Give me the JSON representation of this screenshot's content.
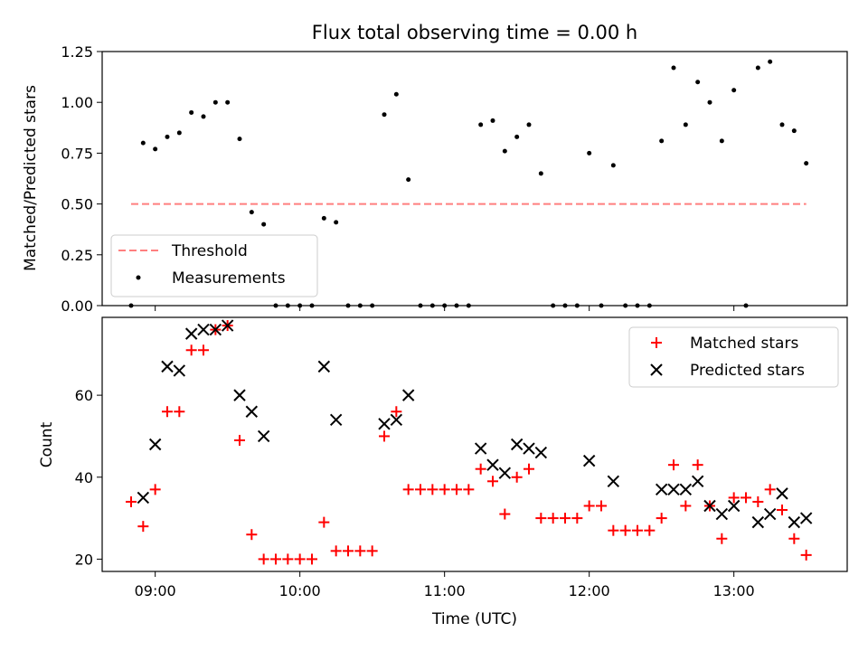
{
  "chart_data": [
    {
      "type": "scatter",
      "title": "Flux total observing time = 0.00 h",
      "xlabel": "",
      "ylabel": "Matched/Predicted stars",
      "xlim": [
        "08:38",
        "13:47"
      ],
      "ylim": [
        0,
        1.25
      ],
      "yticks": [
        0,
        0.25,
        0.5,
        0.75,
        1.0,
        1.25
      ],
      "ytick_labels": [
        "0.00",
        "0.25",
        "0.50",
        "0.75",
        "1.00",
        "1.25"
      ],
      "xticks": [
        "09:00",
        "10:00",
        "11:00",
        "12:00",
        "13:00"
      ],
      "grid": false,
      "legend_position": "lower-left",
      "series": [
        {
          "name": "Threshold",
          "kind": "line",
          "style": "dashed",
          "color": "#ff7f7f",
          "x": [
            "08:50",
            "13:30"
          ],
          "y": [
            0.5,
            0.5
          ]
        },
        {
          "name": "Measurements",
          "kind": "scatter",
          "marker": "dot",
          "color": "#000000",
          "x": [
            "08:50",
            "08:55",
            "09:00",
            "09:05",
            "09:10",
            "09:15",
            "09:20",
            "09:25",
            "09:30",
            "09:35",
            "09:40",
            "09:45",
            "09:50",
            "09:55",
            "10:00",
            "10:05",
            "10:10",
            "10:15",
            "10:20",
            "10:25",
            "10:30",
            "10:35",
            "10:40",
            "10:45",
            "10:50",
            "10:55",
            "11:00",
            "11:05",
            "11:10",
            "11:15",
            "11:20",
            "11:25",
            "11:30",
            "11:35",
            "11:40",
            "11:45",
            "11:50",
            "11:55",
            "12:00",
            "12:05",
            "12:10",
            "12:15",
            "12:20",
            "12:25",
            "12:30",
            "12:35",
            "12:40",
            "12:45",
            "12:50",
            "12:55",
            "13:00",
            "13:05",
            "13:10",
            "13:15",
            "13:20",
            "13:25",
            "13:30"
          ],
          "y": [
            0,
            0.8,
            0.77,
            0.83,
            0.85,
            0.95,
            0.93,
            1.0,
            1.0,
            0.82,
            0.46,
            0.4,
            0,
            0,
            0,
            0,
            0.43,
            0.41,
            0,
            0,
            0,
            0.94,
            1.04,
            0.62,
            0,
            0,
            0,
            0,
            0,
            0.89,
            0.91,
            0.76,
            0.83,
            0.89,
            0.65,
            0,
            0,
            0,
            0.75,
            0,
            0.69,
            0,
            0,
            0,
            0.81,
            1.17,
            0.89,
            1.1,
            1.0,
            0.81,
            1.06,
            0,
            1.17,
            1.2,
            0.89,
            0.86,
            0.7
          ]
        }
      ]
    },
    {
      "type": "scatter",
      "title": "",
      "xlabel": "Time (UTC)",
      "ylabel": "Count",
      "xlim": [
        "08:38",
        "13:47"
      ],
      "ylim": [
        17,
        79
      ],
      "yticks": [
        20,
        40,
        60
      ],
      "ytick_labels": [
        "20",
        "40",
        "60"
      ],
      "xticks": [
        "09:00",
        "10:00",
        "11:00",
        "12:00",
        "13:00"
      ],
      "xtick_labels": [
        "09:00",
        "10:00",
        "11:00",
        "12:00",
        "13:00"
      ],
      "grid": false,
      "legend_position": "top-right",
      "series": [
        {
          "name": "Matched stars",
          "kind": "scatter",
          "marker": "plus",
          "color": "#ff0000",
          "x": [
            "08:50",
            "08:55",
            "09:00",
            "09:05",
            "09:10",
            "09:15",
            "09:20",
            "09:25",
            "09:30",
            "09:35",
            "09:40",
            "09:45",
            "09:50",
            "09:55",
            "10:00",
            "10:05",
            "10:10",
            "10:15",
            "10:20",
            "10:25",
            "10:30",
            "10:35",
            "10:40",
            "10:45",
            "10:50",
            "10:55",
            "11:00",
            "11:05",
            "11:10",
            "11:15",
            "11:20",
            "11:25",
            "11:30",
            "11:35",
            "11:40",
            "11:45",
            "11:50",
            "11:55",
            "12:00",
            "12:05",
            "12:10",
            "12:15",
            "12:20",
            "12:25",
            "12:30",
            "12:35",
            "12:40",
            "12:45",
            "12:50",
            "12:55",
            "13:00",
            "13:05",
            "13:10",
            "13:15",
            "13:20",
            "13:25",
            "13:30"
          ],
          "y": [
            34,
            28,
            37,
            56,
            56,
            71,
            71,
            76,
            77,
            49,
            26,
            20,
            20,
            20,
            20,
            20,
            29,
            22,
            22,
            22,
            22,
            50,
            56,
            37,
            37,
            37,
            37,
            37,
            37,
            42,
            39,
            31,
            40,
            42,
            30,
            30,
            30,
            30,
            33,
            33,
            27,
            27,
            27,
            27,
            30,
            43,
            33,
            43,
            33,
            25,
            35,
            35,
            34,
            37,
            32,
            25,
            21
          ]
        },
        {
          "name": "Predicted stars",
          "kind": "scatter",
          "marker": "x",
          "color": "#000000",
          "x": [
            "08:55",
            "09:00",
            "09:05",
            "09:10",
            "09:15",
            "09:20",
            "09:25",
            "09:30",
            "09:35",
            "09:40",
            "09:45",
            "10:10",
            "10:15",
            "10:35",
            "10:40",
            "10:45",
            "11:15",
            "11:20",
            "11:25",
            "11:30",
            "11:35",
            "11:40",
            "12:00",
            "12:10",
            "12:30",
            "12:35",
            "12:40",
            "12:45",
            "12:50",
            "12:55",
            "13:00",
            "13:10",
            "13:15",
            "13:20",
            "13:25",
            "13:30"
          ],
          "y": [
            35,
            48,
            67,
            66,
            75,
            76,
            76,
            77,
            60,
            56,
            50,
            67,
            54,
            53,
            54,
            60,
            47,
            43,
            41,
            48,
            47,
            46,
            44,
            39,
            37,
            37,
            37,
            39,
            33,
            31,
            33,
            29,
            31,
            36,
            29,
            30
          ]
        }
      ]
    }
  ]
}
